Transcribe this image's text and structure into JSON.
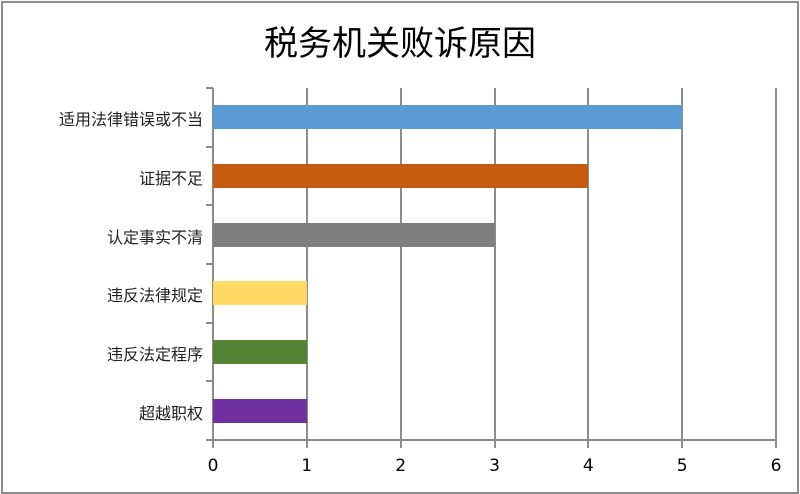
{
  "chart_data": {
    "type": "bar",
    "orientation": "horizontal",
    "title": "税务机关败诉原因",
    "categories": [
      "适用法律错误或不当",
      "证据不足",
      "认定事实不清",
      "违反法律规定",
      "违反法定程序",
      "超越职权"
    ],
    "values": [
      5,
      4,
      3,
      1,
      1,
      1
    ],
    "colors": [
      "#5b9bd5",
      "#c55a11",
      "#7f7f7f",
      "#ffd966",
      "#548235",
      "#7030a0"
    ],
    "xlabel": "",
    "ylabel": "",
    "xlim": [
      0,
      6
    ],
    "xticks": [
      "0",
      "1",
      "2",
      "3",
      "4",
      "5",
      "6"
    ],
    "grid": true,
    "legend": null
  }
}
